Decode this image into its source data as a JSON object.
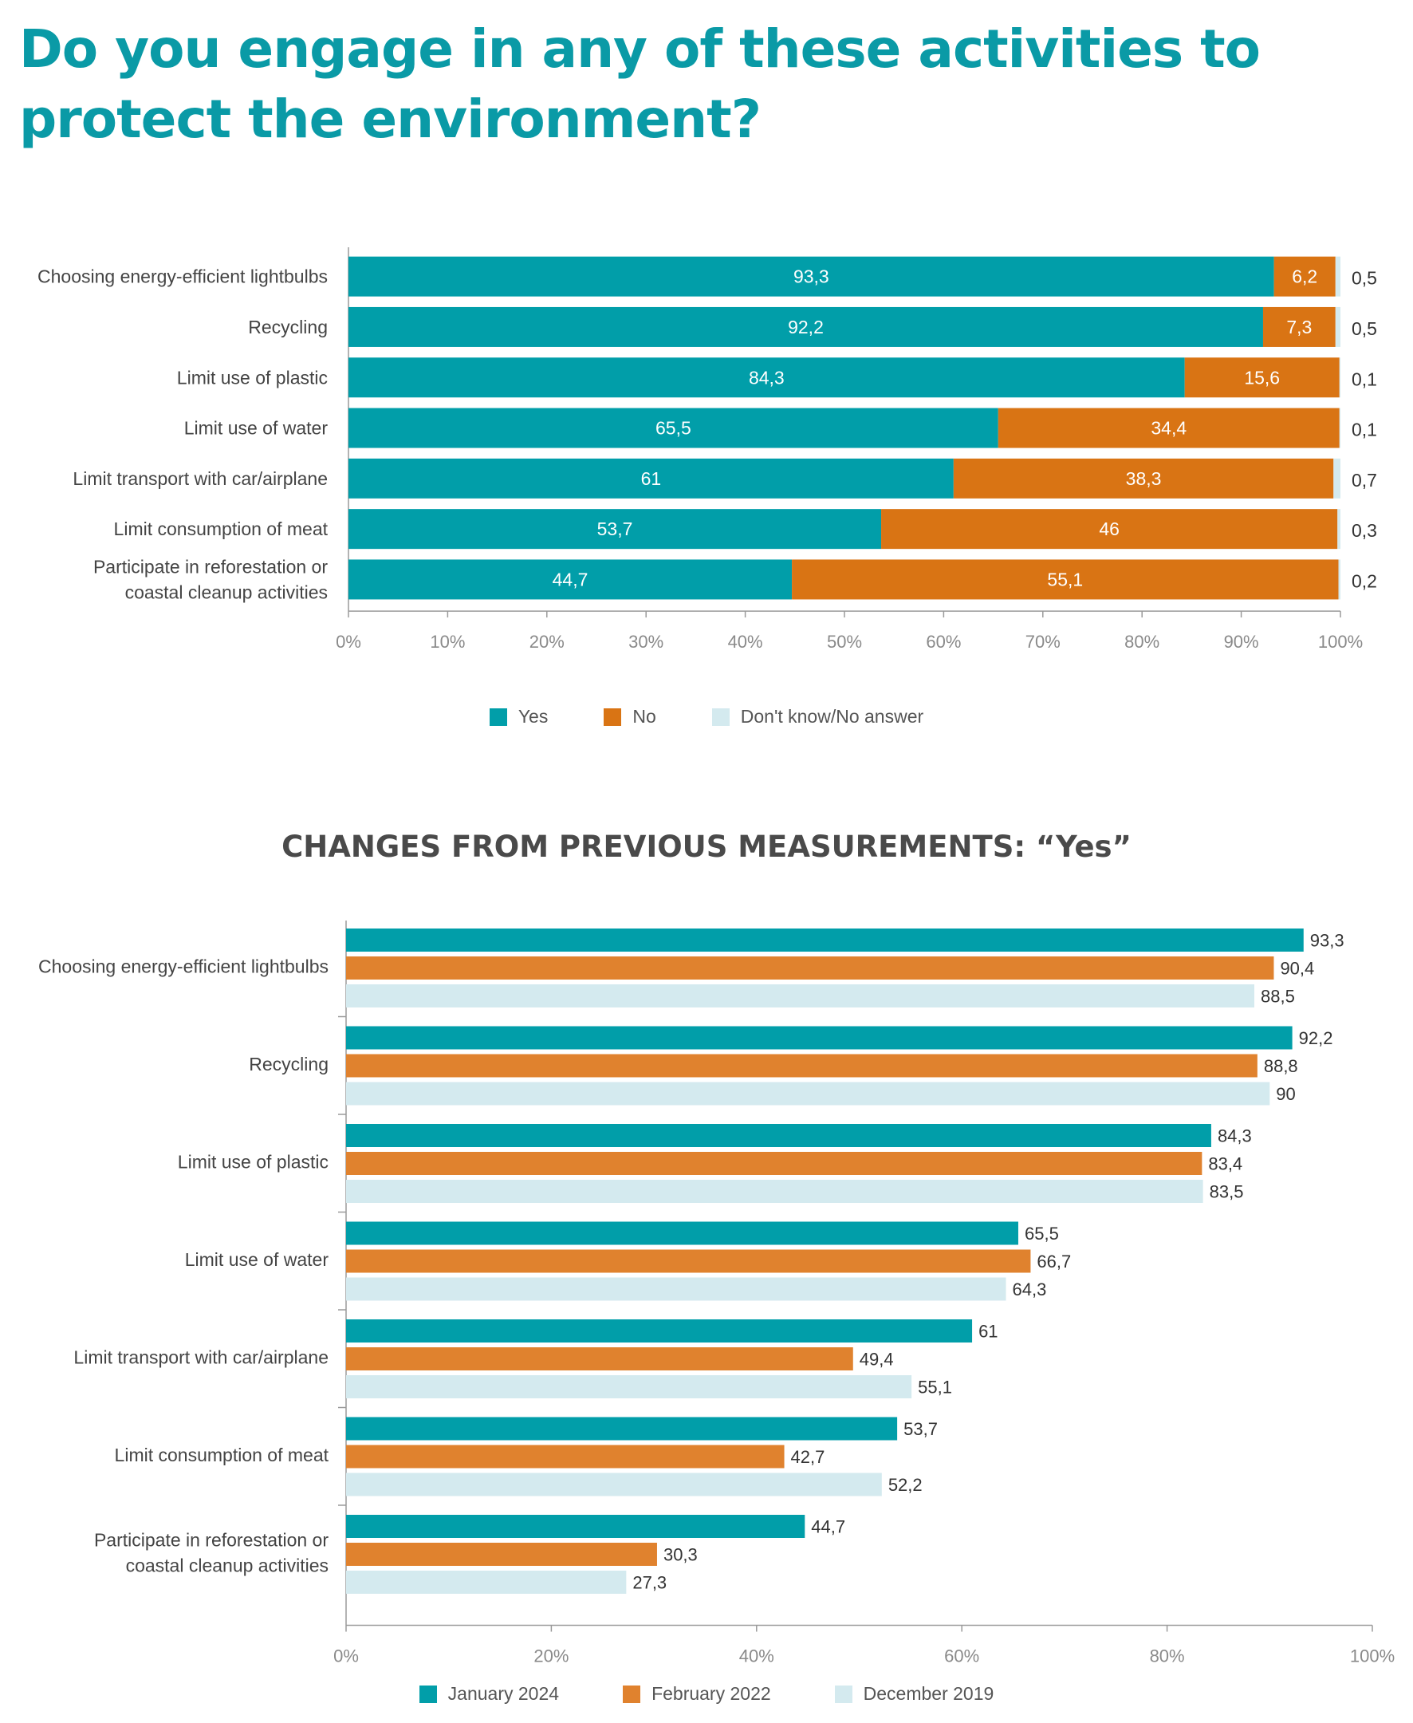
{
  "title": "Do you engage in any of these activities to protect the environment?",
  "chart_data": [
    {
      "type": "bar",
      "stacked": true,
      "orientation": "horizontal",
      "categories": [
        "Choosing energy-efficient lightbulbs",
        "Recycling",
        "Limit use of plastic",
        "Limit use of water",
        "Limit transport with car/airplane",
        "Limit consumption of meat",
        "Participate in reforestation or coastal cleanup activities"
      ],
      "series": [
        {
          "name": "Yes",
          "color": "#019ea9",
          "values": [
            93.3,
            92.2,
            84.3,
            65.5,
            61,
            53.7,
            44.7
          ]
        },
        {
          "name": "No",
          "color": "#d97414",
          "values": [
            6.2,
            7.3,
            15.6,
            34.4,
            38.3,
            46,
            55.1
          ]
        },
        {
          "name": "Don't know/No answer",
          "color": "#d4eaef",
          "values": [
            0.5,
            0.5,
            0.1,
            0.1,
            0.7,
            0.3,
            0.2
          ]
        }
      ],
      "value_labels": {
        "Yes": [
          "93,3",
          "92,2",
          "84,3",
          "65,5",
          "61",
          "53,7",
          "44,7"
        ],
        "No": [
          "6,2",
          "7,3",
          "15,6",
          "34,4",
          "38,3",
          "46",
          "55,1"
        ],
        "Don't know/No answer": [
          "0,5",
          "0,5",
          "0,1",
          "0,1",
          "0,7",
          "0,3",
          "0,2"
        ]
      },
      "xlim": [
        0,
        100
      ],
      "x_ticks": [
        "0%",
        "10%",
        "20%",
        "30%",
        "40%",
        "50%",
        "60%",
        "70%",
        "80%",
        "90%",
        "100%"
      ],
      "legend_position": "bottom"
    },
    {
      "type": "bar",
      "orientation": "horizontal",
      "title": "CHANGES FROM PREVIOUS MEASUREMENTS: “Yes”",
      "categories": [
        "Choosing energy-efficient lightbulbs",
        "Recycling",
        "Limit use of plastic",
        "Limit use of water",
        "Limit transport with car/airplane",
        "Limit consumption of meat",
        "Participate in reforestation or coastal cleanup activities"
      ],
      "series": [
        {
          "name": "January 2024",
          "color": "#019ea9",
          "values": [
            93.3,
            92.2,
            84.3,
            65.5,
            61,
            53.7,
            44.7
          ],
          "labels": [
            "93,3",
            "92,2",
            "84,3",
            "65,5",
            "61",
            "53,7",
            "44,7"
          ]
        },
        {
          "name": "February 2022",
          "color": "#e0822e",
          "values": [
            90.4,
            88.8,
            83.4,
            66.7,
            49.4,
            42.7,
            30.3
          ],
          "labels": [
            "90,4",
            "88,8",
            "83,4",
            "66,7",
            "49,4",
            "42,7",
            "30,3"
          ]
        },
        {
          "name": "December 2019",
          "color": "#d4eaef",
          "values": [
            88.5,
            90,
            83.5,
            64.3,
            55.1,
            52.2,
            27.3
          ],
          "labels": [
            "88,5",
            "90",
            "83,5",
            "64,3",
            "55,1",
            "52,2",
            "27,3"
          ]
        }
      ],
      "xlim": [
        0,
        100
      ],
      "x_ticks": [
        "0%",
        "20%",
        "40%",
        "60%",
        "80%",
        "100%"
      ],
      "legend_position": "bottom"
    }
  ]
}
